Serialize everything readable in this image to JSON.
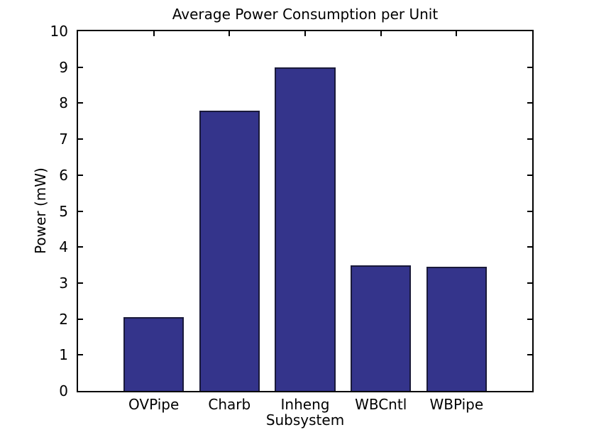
{
  "figure": {
    "background": "#ffffff"
  },
  "chart_data": {
    "type": "bar",
    "title": "Average Power Consumption per Unit",
    "xlabel": "Subsystem",
    "ylabel": "Power (mW)",
    "categories": [
      "OVPipe",
      "Charb",
      "Inheng",
      "WBCntl",
      "WBPipe"
    ],
    "values": [
      2.05,
      7.8,
      9.0,
      3.5,
      3.45
    ],
    "ylim": [
      0,
      10
    ],
    "xlim": [
      0,
      6
    ],
    "yticks": [
      0,
      1,
      2,
      3,
      4,
      5,
      6,
      7,
      8,
      9,
      10
    ],
    "bar_width_data_units": 0.8,
    "bar_color": "#34348b",
    "bar_edge_color": "#1a1a3a",
    "axis_color": "#000000",
    "text_color": "#000000",
    "grid": false,
    "legend_position": "none"
  }
}
